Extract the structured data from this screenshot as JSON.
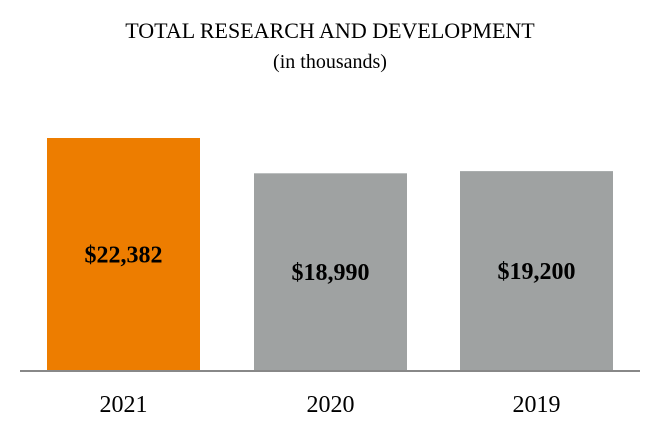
{
  "chart_data": {
    "type": "bar",
    "title": "TOTAL RESEARCH AND DEVELOPMENT",
    "subtitle": "(in thousands)",
    "categories": [
      "2021",
      "2020",
      "2019"
    ],
    "values": [
      22382,
      18990,
      19200
    ],
    "value_labels": [
      "$22,382",
      "$18,990",
      "$19,200"
    ],
    "colors": [
      "#ED7D00",
      "#9FA2A2",
      "#9FA2A2"
    ],
    "axis_color": "#888888",
    "xlabel": "",
    "ylabel": "",
    "ylim": [
      0,
      24000
    ],
    "grid": false,
    "legend": "none"
  }
}
